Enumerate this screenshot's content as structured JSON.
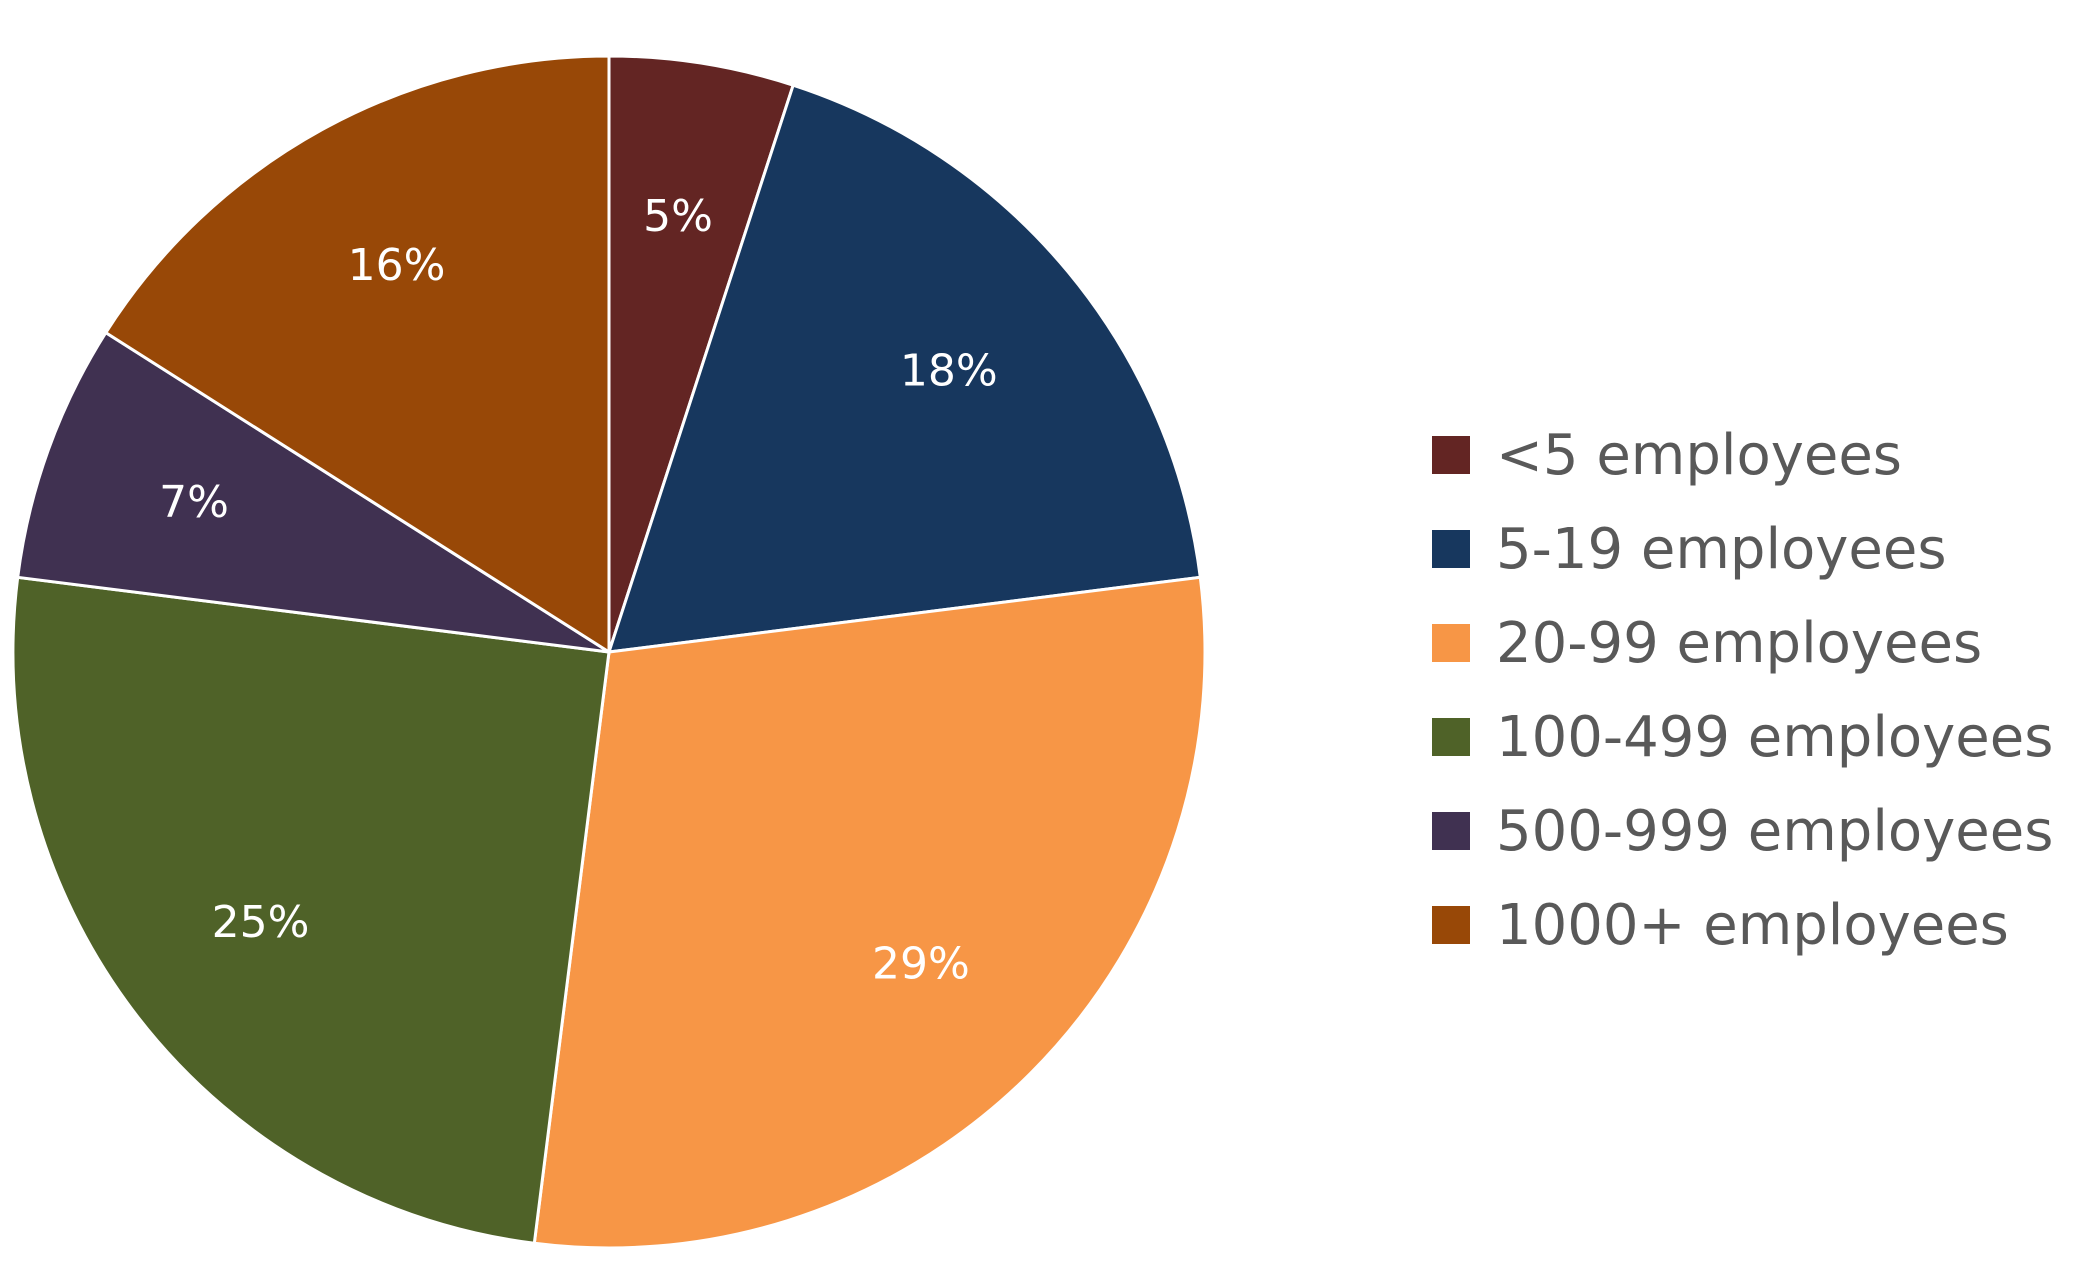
{
  "chart_data": {
    "type": "pie",
    "categories": [
      "<5 employees",
      "5-19 employees",
      "20-99 employees",
      "100-499 employees",
      "500-999 employees",
      "1000+ employees"
    ],
    "values": [
      5,
      18,
      29,
      25,
      7,
      16
    ],
    "labels": [
      "5%",
      "18%",
      "29%",
      "25%",
      "7%",
      "16%"
    ],
    "colors": [
      "#632523",
      "#17375E",
      "#F79646",
      "#4F6228",
      "#403151",
      "#984807"
    ],
    "legend_position": "right",
    "start_angle_deg": 0,
    "direction": "clockwise"
  }
}
